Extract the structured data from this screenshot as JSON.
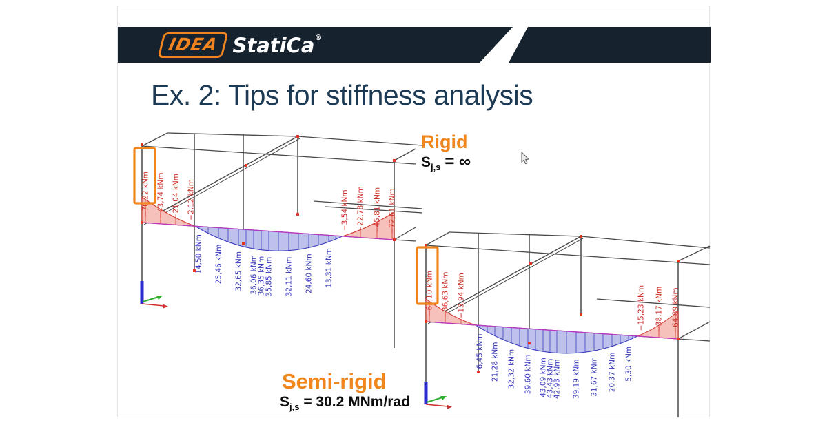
{
  "header": {
    "logo_box_text": "IDEA",
    "logo_text": "StatiCa",
    "logo_registered": "®"
  },
  "title": "Ex. 2: Tips for stiffness analysis",
  "colors": {
    "navy": "#16222e",
    "brand_orange": "#f28420",
    "title_blue": "#1d3a55",
    "frame_gray": "#4a4a4a",
    "negative_line": "#d03a2e",
    "negative_fill": "#f7c1bb",
    "positive_line": "#3b3bbf",
    "positive_fill": "#bdc1ec",
    "baseline_magenta": "#bb39c0",
    "node_red": "#e23428",
    "highlight_orange": "#f0861c",
    "axis_x_red": "#d03030",
    "axis_y_green": "#2fae2f",
    "axis_z_blue": "#2b2bd0"
  },
  "chart_data": [
    {
      "type": "bending-moment-diagram",
      "id": "rigid",
      "label": "Rigid",
      "stiffness": {
        "symbol": "S",
        "subscript": "j,s",
        "value": "= ∞"
      },
      "units": "kNm",
      "negative_left_kNm": [
        "−70,22 kNm",
        "−43,74 kNm",
        "−21,04 kNm",
        "−2,12 kNm"
      ],
      "positive_kNm": [
        "14,50 kNm",
        "25,46 kNm",
        "32,65 kNm",
        "36,06 kNm",
        "36,35 kNm",
        "35,85 kNm",
        "32,11 kNm",
        "24,60 kNm",
        "13,31 kNm"
      ],
      "negative_right_kNm": [
        "−3,54 kNm",
        "−22,78 kNm",
        "−45,81 kNm",
        "−72,61 kNm"
      ],
      "highlighted_label": "−70,22 kNm"
    },
    {
      "type": "bending-moment-diagram",
      "id": "semi-rigid",
      "label": "Semi-rigid",
      "stiffness": {
        "symbol": "S",
        "subscript": "j,s",
        "value": "= 30.2 MNm/rad"
      },
      "units": "kNm",
      "negative_left_kNm": [
        "−63,10 kNm",
        "−36,63 kNm",
        "−13,94 kNm"
      ],
      "positive_kNm": [
        "6,45 kNm",
        "21,28 kNm",
        "32,32 kNm",
        "39,60 kNm",
        "43,09 kNm",
        "43,43 kNm",
        "42,93 kNm",
        "39,19 kNm",
        "31,67 kNm",
        "20,37 kNm",
        "5,30 kNm"
      ],
      "negative_right_kNm": [
        "−15,23 kNm",
        "−38,17 kNm",
        "−64,89 kNm"
      ],
      "highlighted_label": "−63,10 kNm"
    }
  ]
}
